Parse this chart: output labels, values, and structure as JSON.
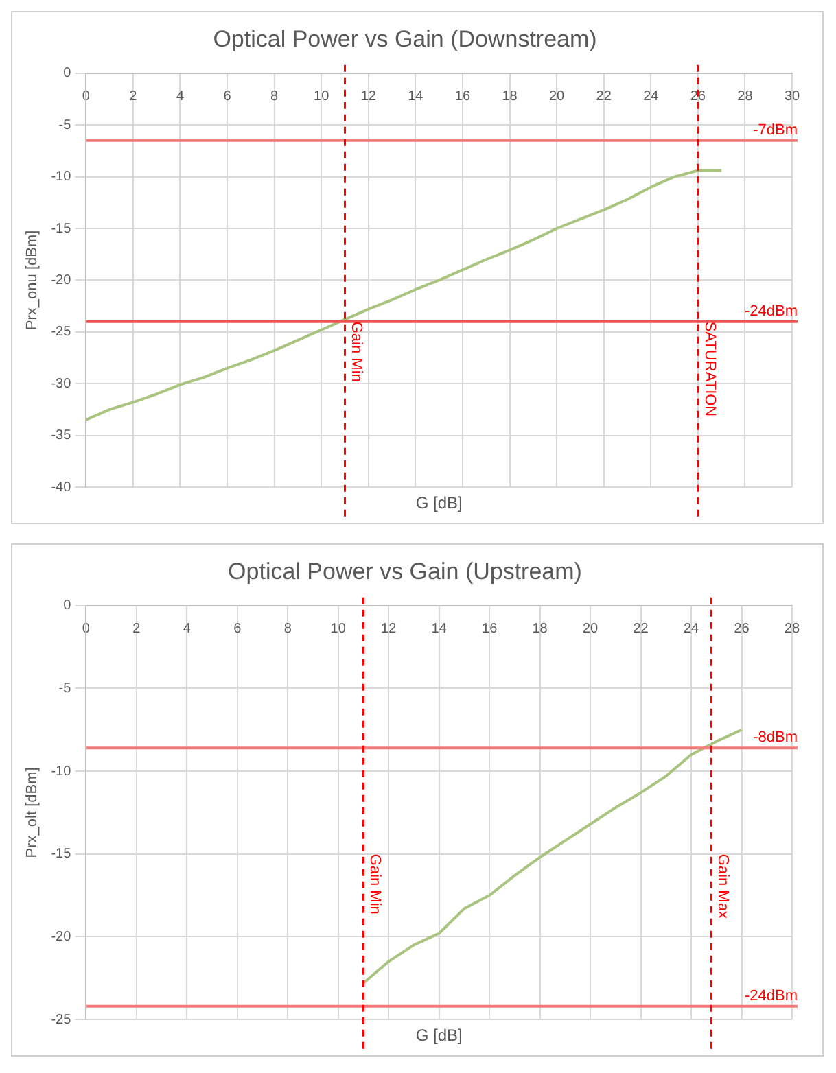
{
  "chart_data": [
    {
      "type": "line",
      "title": "Optical Power vs Gain (Downstream)",
      "xlabel": "G [dB]",
      "ylabel": "Prx_onu [dBm]",
      "x": [
        0,
        1,
        2,
        3,
        4,
        5,
        6,
        7,
        8,
        9,
        10,
        11,
        12,
        13,
        14,
        15,
        16,
        17,
        18,
        19,
        20,
        21,
        22,
        23,
        24,
        25,
        26,
        27
      ],
      "series": [
        {
          "color": "#a9c47f",
          "values": [
            -33.5,
            -32.5,
            -31.8,
            -31,
            -30.1,
            -29.4,
            -28.5,
            -27.7,
            -26.8,
            -25.8,
            -24.8,
            -23.8,
            -22.8,
            -21.9,
            -20.9,
            -20,
            -19,
            -18,
            -17.1,
            -16.1,
            -15,
            -14.1,
            -13.2,
            -12.2,
            -11,
            -10,
            -9.4,
            -9.4
          ]
        }
      ],
      "xlim": [
        0,
        30
      ],
      "xticks": [
        0,
        2,
        4,
        6,
        8,
        10,
        12,
        14,
        16,
        18,
        20,
        22,
        24,
        26,
        28,
        30
      ],
      "ylim": [
        -40,
        0
      ],
      "yticks": [
        -40,
        -35,
        -30,
        -25,
        -20,
        -15,
        -10,
        -5,
        0
      ],
      "grid": true,
      "marker": "none",
      "line_style": "solid",
      "ref_lines": [
        {
          "axis": "y",
          "value": -6.5,
          "label": "-7dBm",
          "color": "#f47a7a",
          "line_style": "solid"
        },
        {
          "axis": "y",
          "value": -24,
          "label": "-24dBm",
          "color": "#f05050",
          "line_style": "solid"
        },
        {
          "axis": "x",
          "value": 11,
          "label": "Gain Min",
          "color": "#ff0000",
          "line_style": "dashed"
        },
        {
          "axis": "x",
          "value": 26,
          "label": "SATURATION",
          "color": "#ff0000",
          "line_style": "dashed"
        }
      ]
    },
    {
      "type": "line",
      "title": "Optical Power vs Gain (Upstream)",
      "xlabel": "G [dB]",
      "ylabel": "Prx_olt [dBm]",
      "x": [
        11,
        12,
        13,
        14,
        15,
        16,
        17,
        18,
        19,
        20,
        21,
        22,
        23,
        24,
        25,
        26
      ],
      "series": [
        {
          "color": "#a9c47f",
          "values": [
            -22.8,
            -21.5,
            -20.5,
            -19.8,
            -18.3,
            -17.5,
            -16.3,
            -15.2,
            -14.2,
            -13.2,
            -12.2,
            -11.3,
            -10.3,
            -9,
            -8.2,
            -7.5
          ]
        }
      ],
      "xlim": [
        0,
        28
      ],
      "xticks": [
        0,
        2,
        4,
        6,
        8,
        10,
        12,
        14,
        16,
        18,
        20,
        22,
        24,
        26,
        28
      ],
      "ylim": [
        -25,
        0
      ],
      "yticks": [
        -25,
        -20,
        -15,
        -10,
        -5,
        0
      ],
      "grid": true,
      "marker": "none",
      "line_style": "solid",
      "ref_lines": [
        {
          "axis": "y",
          "value": -8.6,
          "label": "-8dBm",
          "color": "#f47a7a",
          "line_style": "solid"
        },
        {
          "axis": "y",
          "value": -24.2,
          "label": "-24dBm",
          "color": "#f47a7a",
          "line_style": "solid"
        },
        {
          "axis": "x",
          "value": 11,
          "label": "Gain Min",
          "color": "#ff0000",
          "line_style": "dashed"
        },
        {
          "axis": "x",
          "value": 24.8,
          "label": "Gain Max",
          "color": "#ff0000",
          "line_style": "dashed"
        }
      ]
    }
  ]
}
